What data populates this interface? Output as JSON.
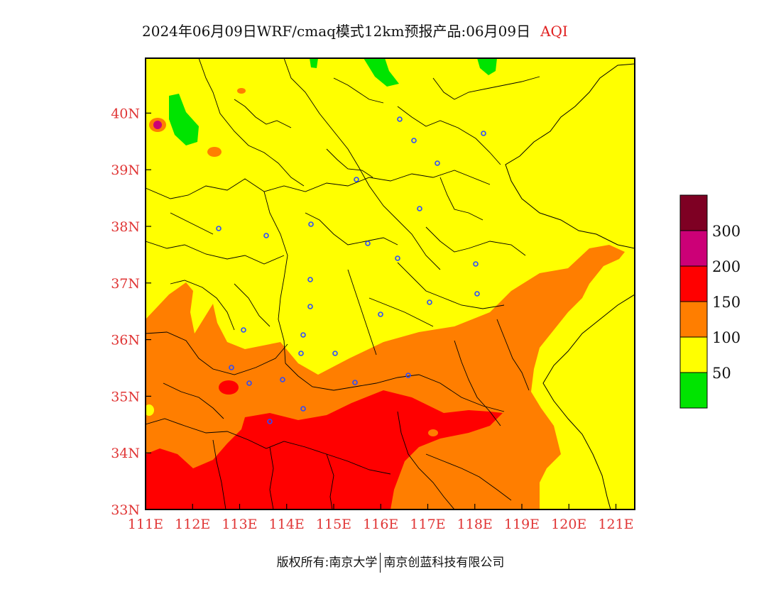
{
  "title": {
    "main": "2024年06月09日WRF/cmaq模式12km预报产品:06月09日",
    "variable": "AQI"
  },
  "map": {
    "lon_ticks": [
      "111E",
      "112E",
      "113E",
      "114E",
      "115E",
      "116E",
      "117E",
      "118E",
      "119E",
      "120E",
      "121E"
    ],
    "lat_ticks": [
      "33N",
      "34N",
      "35N",
      "36N",
      "37N",
      "38N",
      "39N",
      "40N"
    ]
  },
  "legend": {
    "levels": [
      "300",
      "200",
      "150",
      "100",
      "50"
    ],
    "colors": {
      "good": "#00e400",
      "moderate": "#ffff00",
      "usg": "#ff7e00",
      "unhealthy": "#ff0000",
      "very_unhealthy": "#cc0077",
      "hazardous": "#7e0023"
    }
  },
  "footer": {
    "left": "版权所有:南京大学",
    "right": "南京创蓝科技有限公司"
  }
}
